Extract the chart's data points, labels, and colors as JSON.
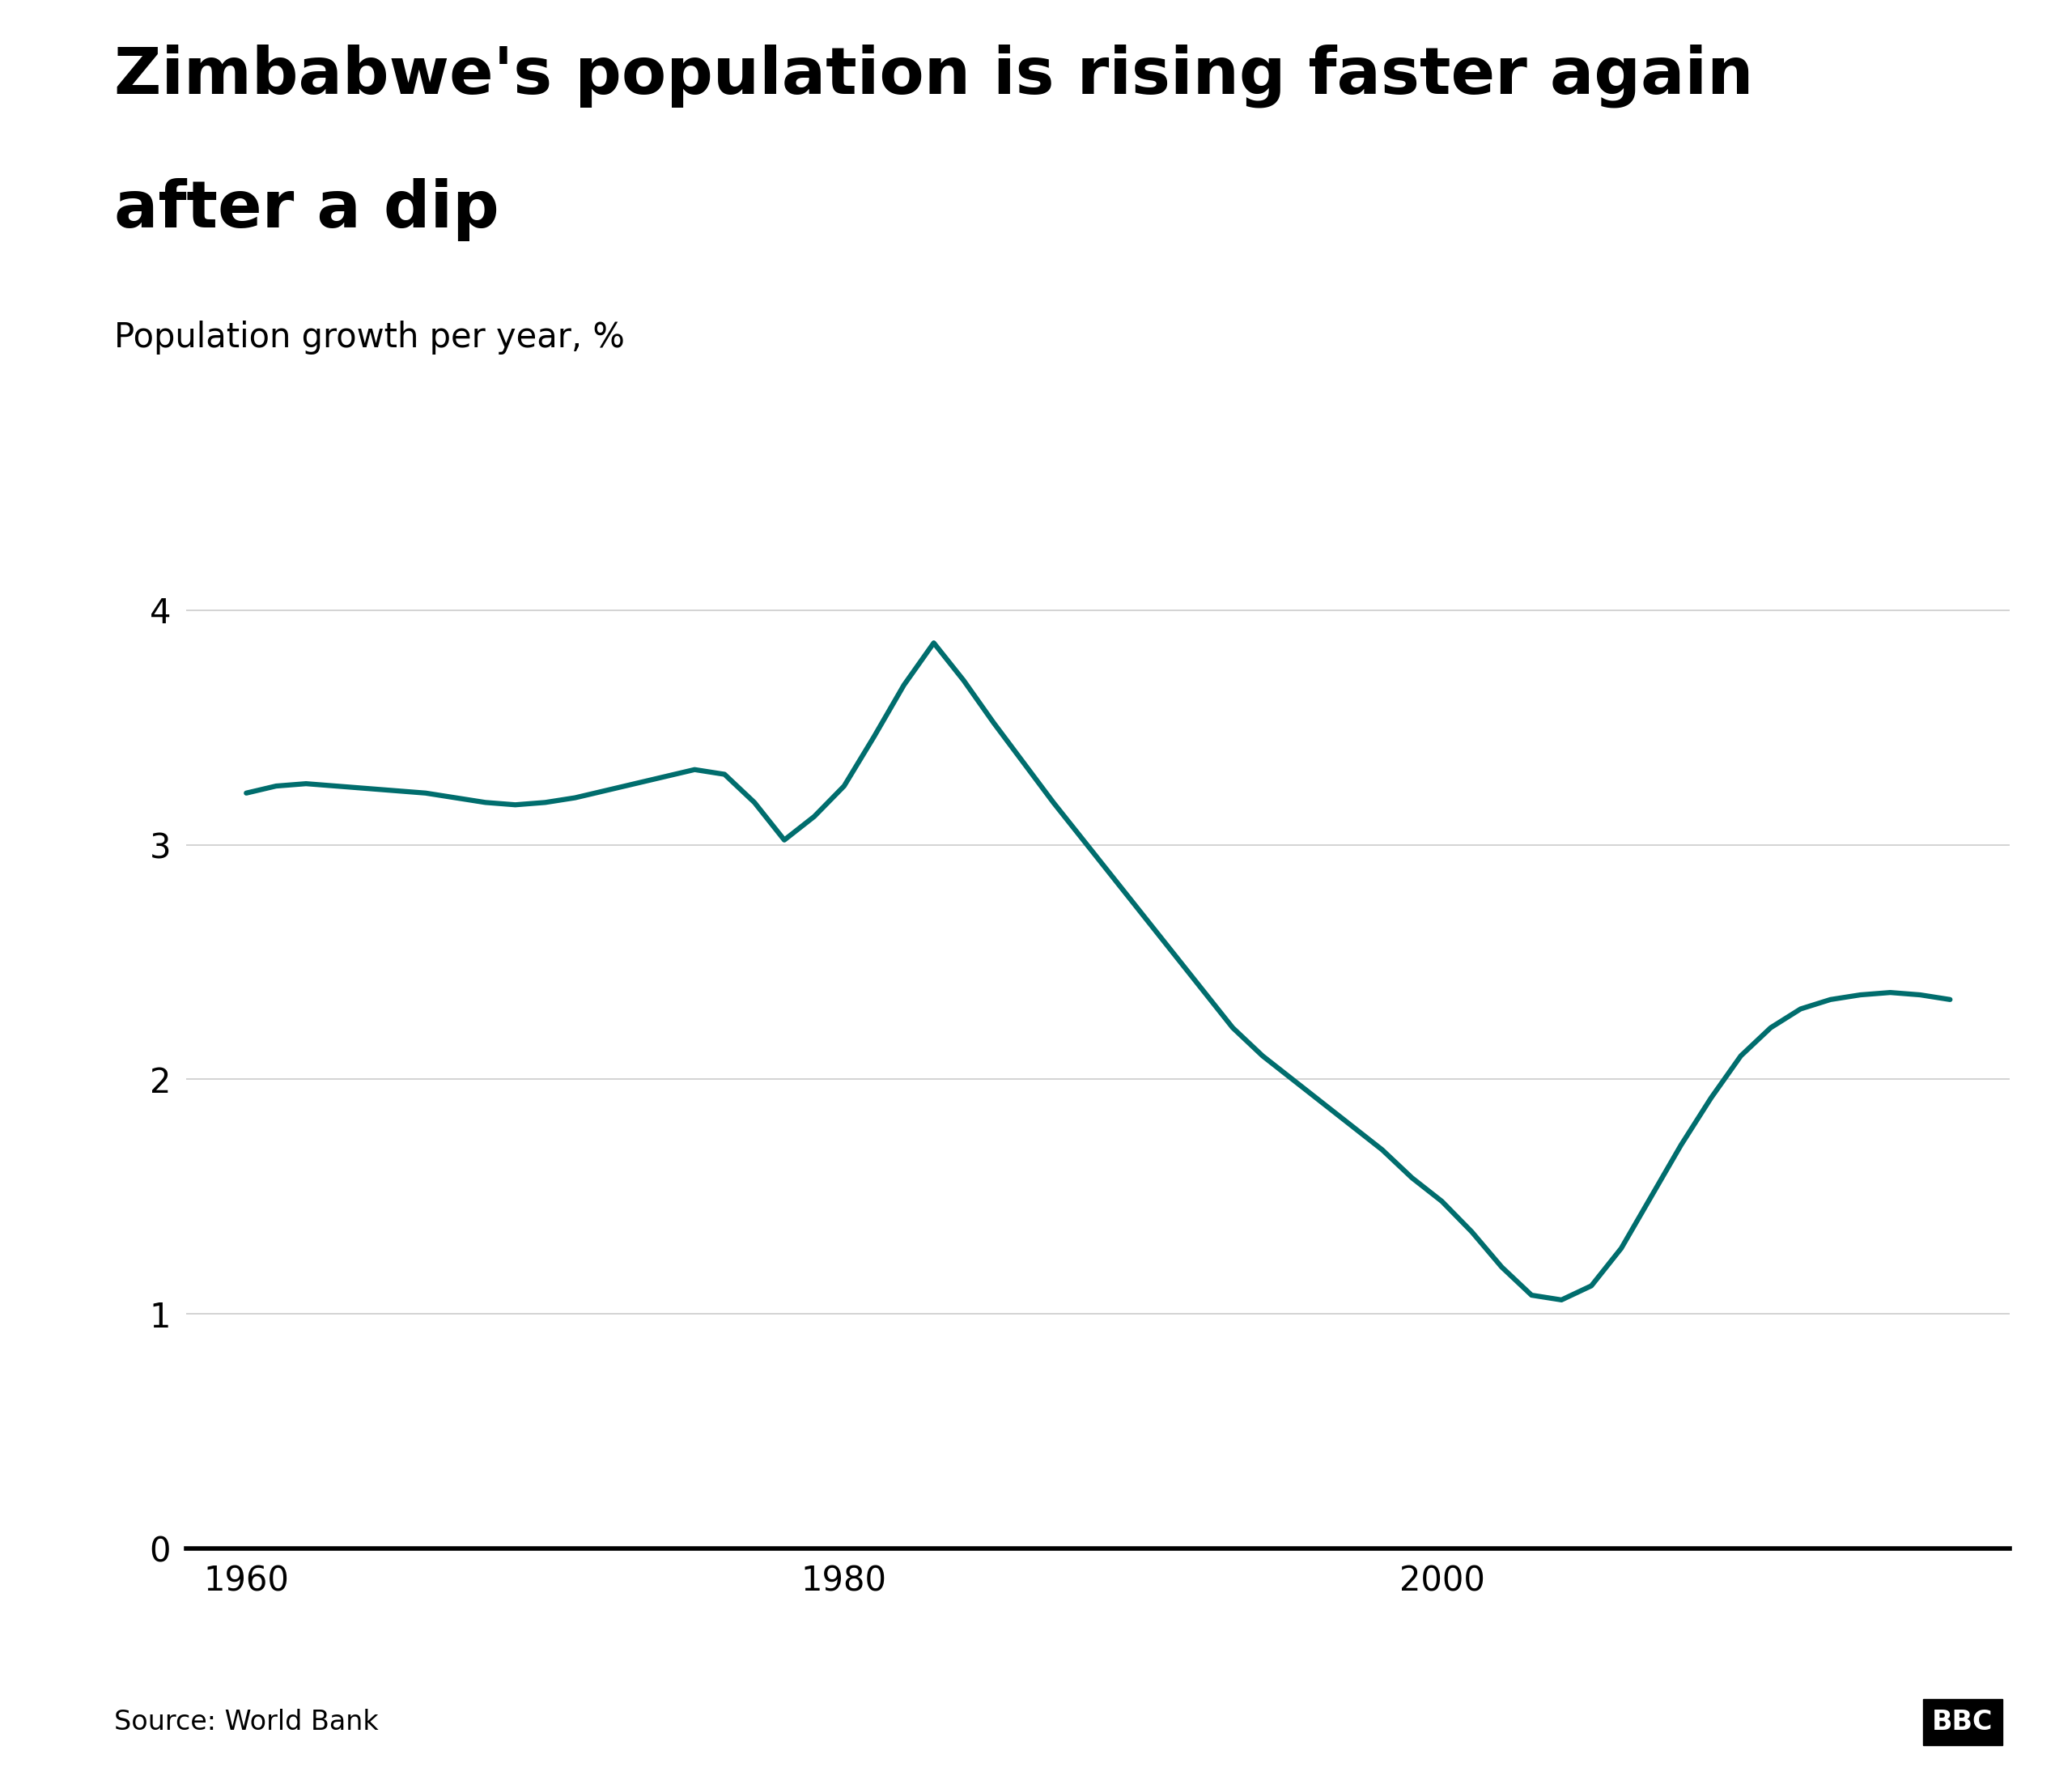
{
  "title_line1": "Zimbabwe's population is rising faster again",
  "title_line2": "after a dip",
  "ylabel": "Population growth per year, %",
  "source": "Source: World Bank",
  "bbc_text": "BBC",
  "line_color": "#006d6d",
  "line_width": 4.5,
  "background_color": "#ffffff",
  "ylim": [
    0,
    4.4
  ],
  "xlim": [
    1958,
    2019
  ],
  "yticks": [
    0,
    1,
    2,
    3,
    4
  ],
  "xticks": [
    1960,
    1980,
    2000
  ],
  "years": [
    1960,
    1961,
    1962,
    1963,
    1964,
    1965,
    1966,
    1967,
    1968,
    1969,
    1970,
    1971,
    1972,
    1973,
    1974,
    1975,
    1976,
    1977,
    1978,
    1979,
    1980,
    1981,
    1982,
    1983,
    1984,
    1985,
    1986,
    1987,
    1988,
    1989,
    1990,
    1991,
    1992,
    1993,
    1994,
    1995,
    1996,
    1997,
    1998,
    1999,
    2000,
    2001,
    2002,
    2003,
    2004,
    2005,
    2006,
    2007,
    2008,
    2009,
    2010,
    2011,
    2012,
    2013,
    2014,
    2015,
    2016,
    2017
  ],
  "values": [
    3.22,
    3.25,
    3.26,
    3.25,
    3.24,
    3.23,
    3.22,
    3.2,
    3.18,
    3.17,
    3.18,
    3.2,
    3.23,
    3.26,
    3.29,
    3.32,
    3.3,
    3.18,
    3.02,
    3.12,
    3.25,
    3.46,
    3.68,
    3.86,
    3.7,
    3.52,
    3.35,
    3.18,
    3.02,
    2.86,
    2.7,
    2.54,
    2.38,
    2.22,
    2.1,
    2.0,
    1.9,
    1.8,
    1.7,
    1.58,
    1.48,
    1.35,
    1.2,
    1.08,
    1.06,
    1.12,
    1.28,
    1.5,
    1.72,
    1.92,
    2.1,
    2.22,
    2.3,
    2.34,
    2.36,
    2.37,
    2.36,
    2.34
  ]
}
